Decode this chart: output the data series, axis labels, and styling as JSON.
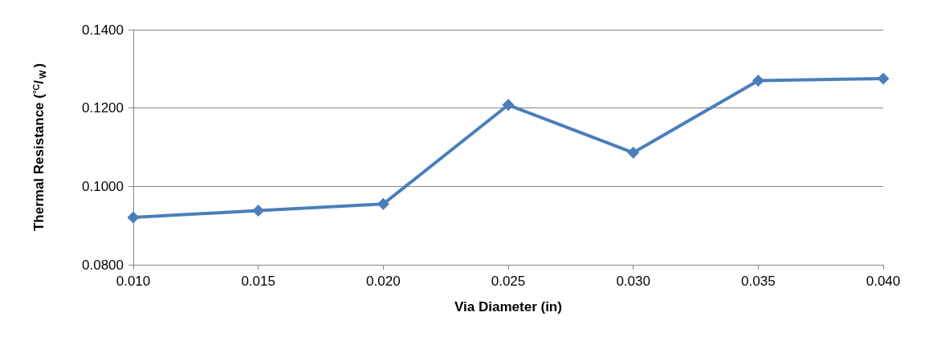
{
  "chart_data": {
    "type": "line",
    "xlabel": "Via Diameter (in)",
    "ylabel": "Thermal Resistance ($^{°C}$/$_{W}$)",
    "x": [
      0.01,
      0.015,
      0.02,
      0.025,
      0.03,
      0.035,
      0.04
    ],
    "series": [
      {
        "color": "#4a7ebb",
        "values": [
          0.0921,
          0.0938,
          0.0955,
          0.1208,
          0.1086,
          0.127,
          0.1275
        ]
      }
    ],
    "xlim": [
      0.01,
      0.04
    ],
    "xticks": [
      {
        "value": 0.01,
        "label": "0.010"
      },
      {
        "value": 0.015,
        "label": "0.015"
      },
      {
        "value": 0.02,
        "label": "0.020"
      },
      {
        "value": 0.025,
        "label": "0.025"
      },
      {
        "value": 0.03,
        "label": "0.030"
      },
      {
        "value": 0.035,
        "label": "0.035"
      },
      {
        "value": 0.04,
        "label": "0.040"
      }
    ],
    "ylim": [
      0.08,
      0.14
    ],
    "yticks": [
      {
        "value": 0.08,
        "label": "0.0800"
      },
      {
        "value": 0.1,
        "label": "0.1000"
      },
      {
        "value": 0.12,
        "label": "0.1200"
      },
      {
        "value": 0.14,
        "label": "0.1400"
      }
    ],
    "grid": "y",
    "marker": "diamond",
    "line_style": "solid"
  }
}
